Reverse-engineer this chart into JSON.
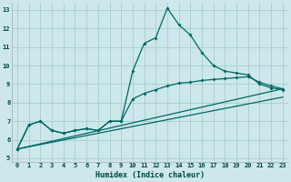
{
  "xlabel": "Humidex (Indice chaleur)",
  "bg_color": "#cce8ea",
  "grid_color": "#aacccc",
  "line_color": "#006666",
  "xticks": [
    0,
    1,
    2,
    3,
    4,
    5,
    6,
    7,
    8,
    9,
    10,
    11,
    12,
    13,
    14,
    15,
    16,
    17,
    18,
    19,
    20,
    21,
    22,
    23
  ],
  "yticks": [
    5,
    6,
    7,
    8,
    9,
    10,
    11,
    12,
    13
  ],
  "xlim": [
    -0.5,
    23.5
  ],
  "ylim": [
    4.8,
    13.4
  ],
  "series1_x": [
    0,
    1,
    2,
    3,
    4,
    5,
    6,
    7,
    8,
    9,
    10,
    11,
    12,
    13,
    14,
    15,
    16,
    17,
    18,
    19,
    20,
    21,
    22,
    23
  ],
  "series1_y": [
    5.5,
    6.8,
    7.0,
    6.5,
    6.35,
    6.5,
    6.6,
    6.5,
    7.0,
    7.0,
    9.7,
    11.2,
    11.5,
    13.1,
    12.2,
    11.65,
    10.7,
    10.0,
    9.7,
    9.6,
    9.5,
    9.0,
    8.8,
    8.7
  ],
  "series2_x": [
    0,
    1,
    2,
    3,
    4,
    5,
    6,
    7,
    8,
    9,
    10,
    11,
    12,
    13,
    14,
    15,
    16,
    17,
    18,
    19,
    20,
    21,
    22,
    23
  ],
  "series2_y": [
    5.5,
    6.8,
    7.0,
    6.5,
    6.35,
    6.5,
    6.6,
    6.5,
    7.0,
    7.0,
    8.2,
    8.5,
    8.7,
    8.9,
    9.05,
    9.1,
    9.2,
    9.25,
    9.3,
    9.35,
    9.4,
    9.1,
    8.9,
    8.75
  ],
  "series3_x": [
    0,
    23
  ],
  "series3_y": [
    5.5,
    8.75
  ],
  "series4_x": [
    0,
    23
  ],
  "series4_y": [
    5.5,
    8.3
  ]
}
